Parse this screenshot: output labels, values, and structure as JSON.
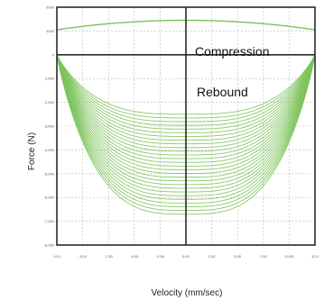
{
  "chart_data": {
    "type": "line",
    "title": "",
    "xlabel": "Velocity (mm/sec)",
    "ylabel": "Force (N)",
    "x_ticks": [
      "-12.0",
      "-10.0",
      "-7.50",
      "-5.00",
      "-2.50",
      "0.00",
      "2.50",
      "5.00",
      "7.50",
      "10.00",
      "12.0"
    ],
    "y_ticks": [
      "2000",
      "1000",
      "0",
      "-1,000",
      "-2,000",
      "-3,000",
      "-4,000",
      "-5,000",
      "-6,000",
      "-7,000",
      "-8,000"
    ],
    "xlim": [
      -12,
      12
    ],
    "ylim": [
      -8000,
      2000
    ],
    "grid": true,
    "annotations": [
      "Compression",
      "Rebound"
    ],
    "series_color": "#7cc35a",
    "compression_curve": {
      "peak": 1450,
      "edge": 1050
    },
    "rebound_curves": {
      "count": 28,
      "min_depth": -2500,
      "max_depth": -6700,
      "edge_force": 0
    }
  }
}
